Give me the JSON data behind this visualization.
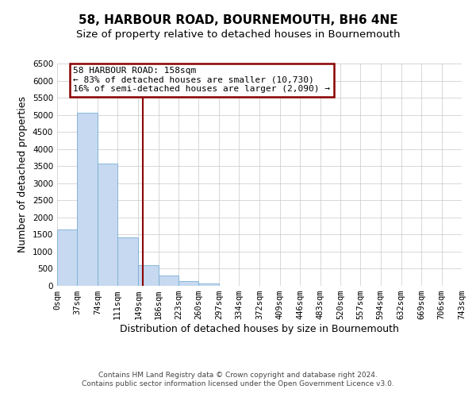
{
  "title": "58, HARBOUR ROAD, BOURNEMOUTH, BH6 4NE",
  "subtitle": "Size of property relative to detached houses in Bournemouth",
  "xlabel": "Distribution of detached houses by size in Bournemouth",
  "ylabel": "Number of detached properties",
  "footer_line1": "Contains HM Land Registry data © Crown copyright and database right 2024.",
  "footer_line2": "Contains public sector information licensed under the Open Government Licence v3.0.",
  "annotation_title": "58 HARBOUR ROAD: 158sqm",
  "annotation_line2": "← 83% of detached houses are smaller (10,730)",
  "annotation_line3": "16% of semi-detached houses are larger (2,090) →",
  "bin_edges": [
    0,
    37,
    74,
    111,
    149,
    186,
    223,
    260,
    297,
    334,
    372,
    409,
    446,
    483,
    520,
    557,
    594,
    632,
    669,
    706,
    743
  ],
  "bin_counts": [
    1650,
    5060,
    3580,
    1420,
    610,
    300,
    140,
    60,
    0,
    0,
    0,
    0,
    0,
    0,
    0,
    0,
    0,
    0,
    0,
    0
  ],
  "bar_color": "#c6d9f0",
  "bar_edge_color": "#7bafd4",
  "vertical_line_x": 158,
  "vertical_line_color": "#8b0000",
  "annotation_box_edge_color": "#8b0000",
  "ylim": [
    0,
    6500
  ],
  "yticks": [
    0,
    500,
    1000,
    1500,
    2000,
    2500,
    3000,
    3500,
    4000,
    4500,
    5000,
    5500,
    6000,
    6500
  ],
  "background_color": "#ffffff",
  "grid_color": "#c8c8c8",
  "title_fontsize": 11,
  "subtitle_fontsize": 9.5,
  "axis_label_fontsize": 9,
  "tick_fontsize": 7.5,
  "annotation_fontsize": 8,
  "footer_fontsize": 6.5
}
